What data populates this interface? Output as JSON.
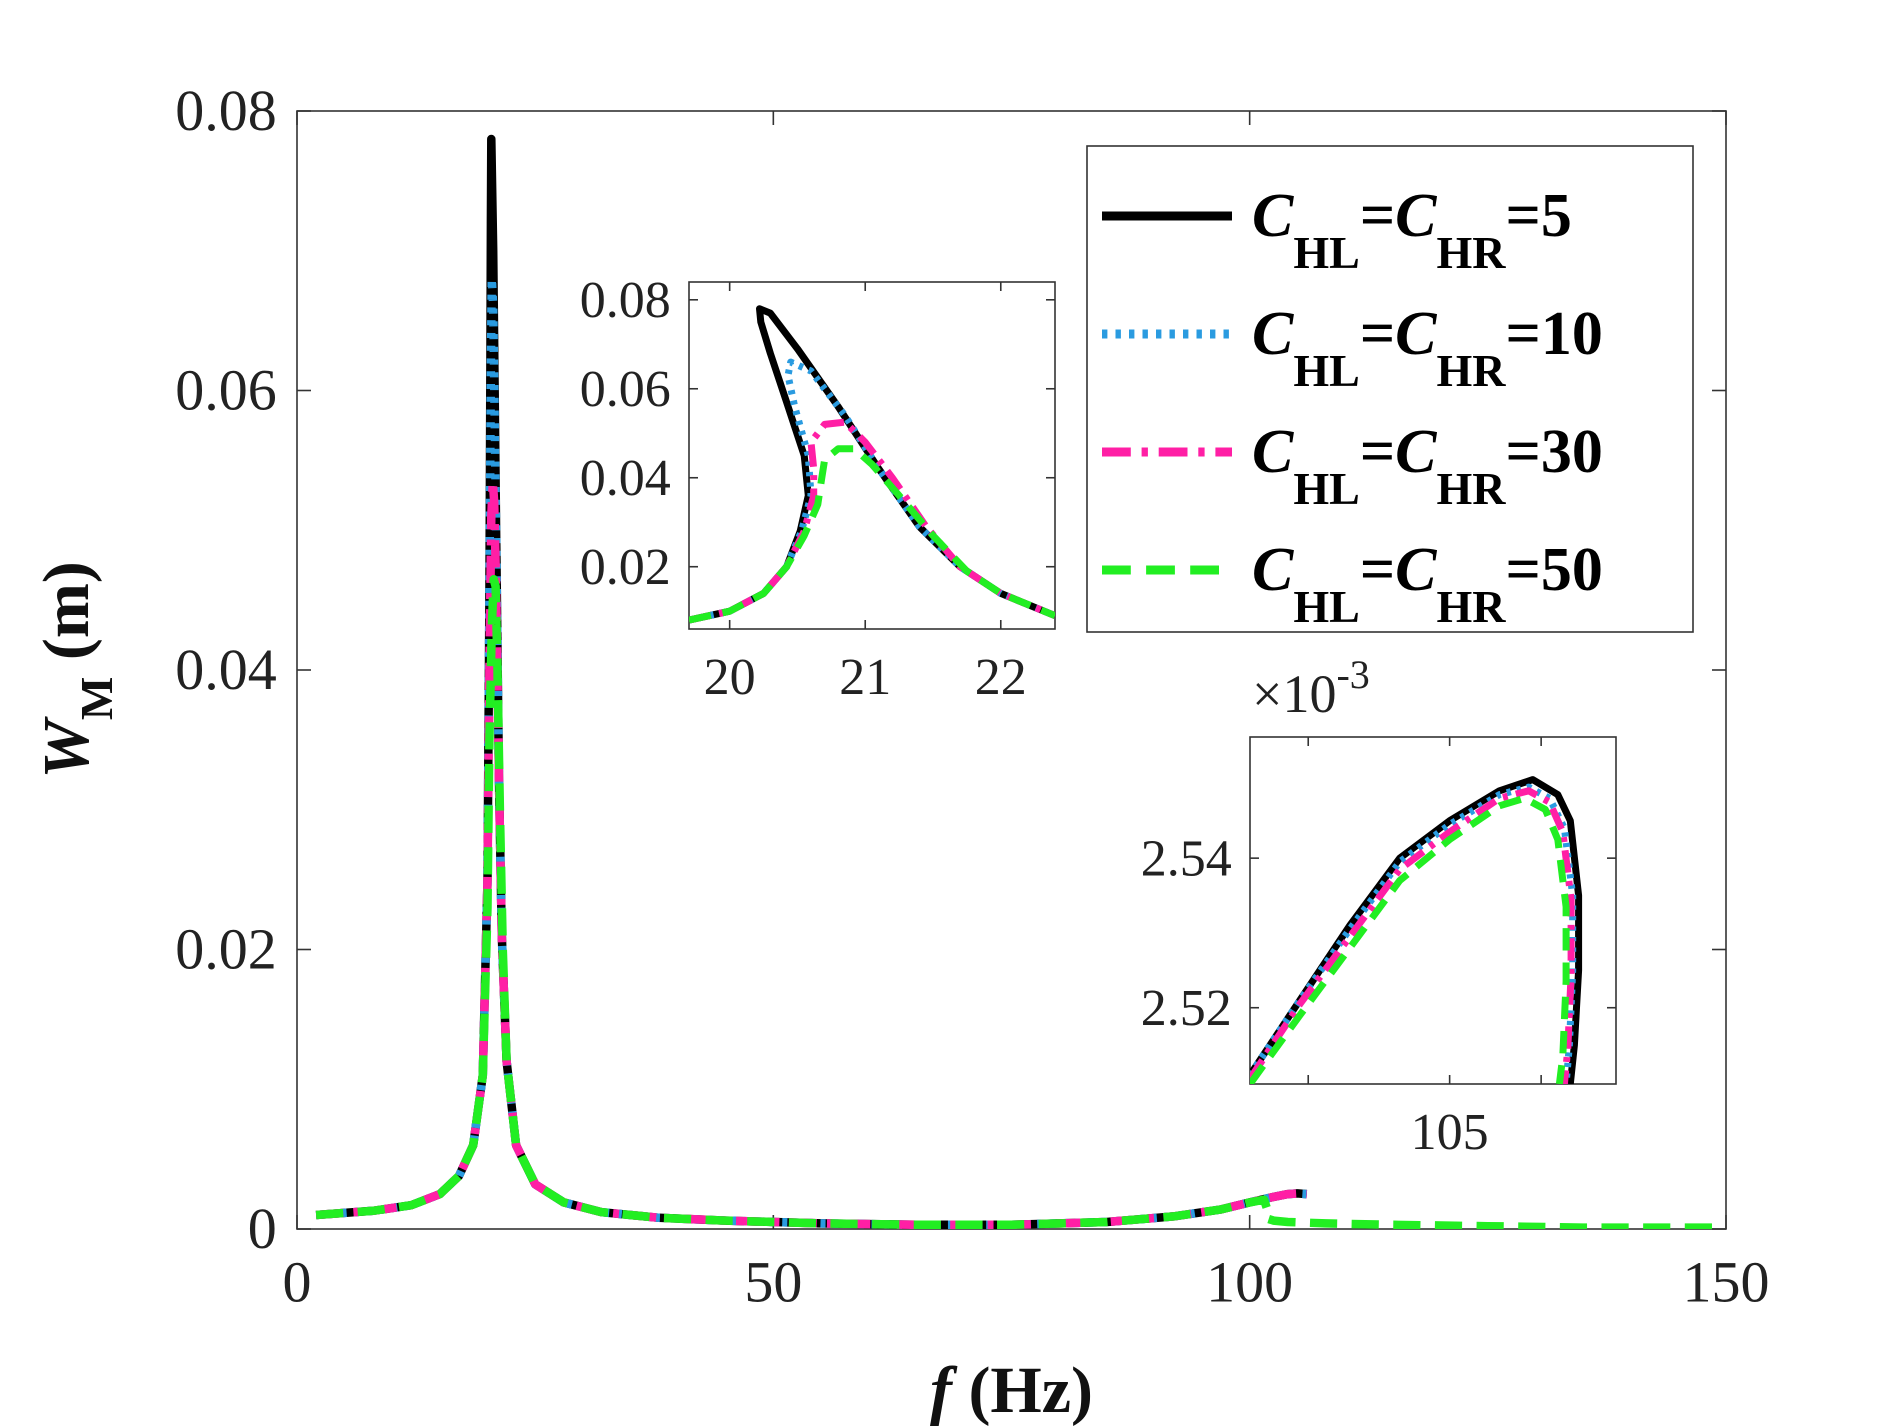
{
  "chart_data": [
    {
      "id": "main",
      "type": "line",
      "xlabel": {
        "italic": "f",
        "rest": " (Hz)"
      },
      "ylabel": {
        "italic": "W",
        "sub": "M",
        "rest": " (m)"
      },
      "xlim": [
        0,
        150
      ],
      "ylim": [
        0,
        0.08
      ],
      "xticks": [
        0,
        50,
        100,
        150
      ],
      "xtick_labels": [
        "0",
        "50",
        "100",
        "150"
      ],
      "yticks": [
        0,
        0.02,
        0.04,
        0.06,
        0.08
      ],
      "ytick_labels": [
        "0",
        "0.02",
        "0.04",
        "0.06",
        "0.08"
      ],
      "grid": false,
      "legend_position": "top-right",
      "series": [
        {
          "name": "CHL=CHR=5",
          "legend": {
            "c1": "C",
            "s1": "HL",
            "eq1": "=",
            "c2": "C",
            "s2": "HR",
            "eq2": "=5"
          },
          "color": "#000000",
          "style": "solid",
          "x": [
            2,
            8,
            12,
            15,
            17,
            18.5,
            19.5,
            20.0,
            20.2,
            20.3,
            20.35,
            20.4,
            20.6,
            20.9,
            21.2,
            21.5,
            22,
            23,
            25,
            28,
            32,
            38,
            45,
            55,
            65,
            75,
            85,
            92,
            97,
            100,
            102.5,
            104,
            105,
            106
          ],
          "y": [
            0.001,
            0.0013,
            0.0017,
            0.0025,
            0.0038,
            0.006,
            0.011,
            0.025,
            0.045,
            0.062,
            0.072,
            0.078,
            0.07,
            0.05,
            0.032,
            0.021,
            0.012,
            0.006,
            0.0032,
            0.0019,
            0.0012,
            0.0008,
            0.0006,
            0.0004,
            0.0003,
            0.0003,
            0.0005,
            0.0009,
            0.0014,
            0.0019,
            0.0023,
            0.0025,
            0.00255,
            0.0025
          ]
        },
        {
          "name": "CHL=CHR=10",
          "legend": {
            "c1": "C",
            "s1": "HL",
            "eq1": "=",
            "c2": "C",
            "s2": "HR",
            "eq2": "=10"
          },
          "color": "#2a9be0",
          "style": "dotted",
          "x": [
            2,
            8,
            12,
            15,
            17,
            18.5,
            19.5,
            20.0,
            20.2,
            20.35,
            20.45,
            20.6,
            20.9,
            21.2,
            21.5,
            22,
            23,
            25,
            28,
            32,
            38,
            45,
            55,
            65,
            75,
            85,
            92,
            97,
            100,
            102.5,
            104,
            105,
            106
          ],
          "y": [
            0.001,
            0.0013,
            0.0017,
            0.0025,
            0.0038,
            0.006,
            0.011,
            0.025,
            0.045,
            0.062,
            0.068,
            0.066,
            0.05,
            0.032,
            0.021,
            0.012,
            0.006,
            0.0032,
            0.0019,
            0.0012,
            0.0008,
            0.0006,
            0.0004,
            0.0003,
            0.0003,
            0.0005,
            0.0009,
            0.0014,
            0.0019,
            0.0023,
            0.0025,
            0.00254,
            0.0025
          ]
        },
        {
          "name": "CHL=CHR=30",
          "legend": {
            "c1": "C",
            "s1": "HL",
            "eq1": "=",
            "c2": "C",
            "s2": "HR",
            "eq2": "=30"
          },
          "color": "#ff1fa5",
          "style": "dashdot",
          "x": [
            2,
            8,
            12,
            15,
            17,
            18.5,
            19.5,
            20.0,
            20.2,
            20.4,
            20.55,
            20.7,
            20.9,
            21.2,
            21.5,
            22,
            23,
            25,
            28,
            32,
            38,
            45,
            55,
            65,
            75,
            85,
            92,
            97,
            100,
            102.5,
            104,
            105,
            106
          ],
          "y": [
            0.001,
            0.0013,
            0.0017,
            0.0025,
            0.0038,
            0.006,
            0.011,
            0.025,
            0.04,
            0.051,
            0.0535,
            0.052,
            0.046,
            0.032,
            0.021,
            0.012,
            0.006,
            0.0032,
            0.0019,
            0.0012,
            0.0008,
            0.0006,
            0.0004,
            0.0003,
            0.0003,
            0.0005,
            0.0009,
            0.0014,
            0.0019,
            0.0023,
            0.0025,
            0.00254,
            0.0025
          ]
        },
        {
          "name": "CHL=CHR=50",
          "legend": {
            "c1": "C",
            "s1": "HL",
            "eq1": "=",
            "c2": "C",
            "s2": "HR",
            "eq2": "=50"
          },
          "color": "#22ee22",
          "style": "dashed",
          "x": [
            2,
            8,
            12,
            15,
            17,
            18.5,
            19.5,
            20.0,
            20.2,
            20.45,
            20.65,
            20.85,
            21.05,
            21.3,
            21.6,
            22,
            23,
            25,
            28,
            32,
            38,
            45,
            55,
            65,
            75,
            85,
            92,
            97,
            100,
            101.5,
            101.8,
            101.6,
            102.5,
            104,
            108,
            115,
            125,
            135,
            150
          ],
          "y": [
            0.001,
            0.0013,
            0.0017,
            0.0025,
            0.0038,
            0.006,
            0.011,
            0.023,
            0.035,
            0.043,
            0.0465,
            0.046,
            0.04,
            0.03,
            0.02,
            0.012,
            0.006,
            0.0032,
            0.0019,
            0.0012,
            0.0008,
            0.0006,
            0.0004,
            0.0003,
            0.0003,
            0.0005,
            0.0009,
            0.0014,
            0.0019,
            0.0021,
            0.0015,
            0.0008,
            0.0006,
            0.0005,
            0.0004,
            0.0003,
            0.0002,
            0.0001,
            0.0001
          ]
        }
      ]
    },
    {
      "id": "inset1",
      "type": "line",
      "xlim": [
        19.7,
        22.4
      ],
      "ylim": [
        0.006,
        0.084
      ],
      "xticks": [
        20,
        21,
        22
      ],
      "xtick_labels": [
        "20",
        "21",
        "22"
      ],
      "yticks": [
        0.02,
        0.04,
        0.06,
        0.08
      ],
      "ytick_labels": [
        "0.02",
        "0.04",
        "0.06",
        "0.08"
      ],
      "series": [
        {
          "name": "CHL=CHR=5",
          "color": "#000000",
          "style": "solid",
          "x": [
            19.7,
            20.0,
            20.25,
            20.42,
            20.52,
            20.58,
            20.55,
            20.42,
            20.3,
            20.23,
            20.22,
            20.3,
            20.5,
            20.8,
            21.1,
            21.4,
            21.7,
            22.0,
            22.4
          ],
          "y": [
            0.008,
            0.01,
            0.014,
            0.02,
            0.028,
            0.036,
            0.045,
            0.057,
            0.068,
            0.075,
            0.078,
            0.077,
            0.069,
            0.056,
            0.042,
            0.029,
            0.02,
            0.014,
            0.009
          ]
        },
        {
          "name": "CHL=CHR=10",
          "color": "#2a9be0",
          "style": "dotted",
          "x": [
            19.7,
            20.0,
            20.25,
            20.42,
            20.53,
            20.6,
            20.58,
            20.48,
            20.43,
            20.45,
            20.6,
            20.85,
            21.1,
            21.4,
            21.7,
            22.0,
            22.4
          ],
          "y": [
            0.008,
            0.01,
            0.014,
            0.02,
            0.028,
            0.036,
            0.045,
            0.056,
            0.063,
            0.066,
            0.064,
            0.054,
            0.042,
            0.029,
            0.02,
            0.014,
            0.009
          ]
        },
        {
          "name": "CHL=CHR=30",
          "color": "#ff1fa5",
          "style": "dashdot",
          "x": [
            19.7,
            20.0,
            20.25,
            20.42,
            20.55,
            20.62,
            20.62,
            20.6,
            20.7,
            20.85,
            21.0,
            21.2,
            21.45,
            21.7,
            22.0,
            22.4
          ],
          "y": [
            0.008,
            0.01,
            0.014,
            0.02,
            0.028,
            0.036,
            0.042,
            0.048,
            0.052,
            0.0525,
            0.048,
            0.04,
            0.029,
            0.02,
            0.014,
            0.009
          ]
        },
        {
          "name": "CHL=CHR=50",
          "color": "#22ee22",
          "style": "dashed",
          "x": [
            19.7,
            20.0,
            20.25,
            20.42,
            20.55,
            20.65,
            20.68,
            20.7,
            20.8,
            20.92,
            21.05,
            21.25,
            21.5,
            21.75,
            22.0,
            22.4
          ],
          "y": [
            0.008,
            0.01,
            0.014,
            0.02,
            0.027,
            0.034,
            0.04,
            0.044,
            0.0465,
            0.0465,
            0.043,
            0.036,
            0.027,
            0.019,
            0.014,
            0.009
          ]
        }
      ]
    },
    {
      "id": "inset2",
      "type": "line",
      "scale_label": {
        "prefix": "×10",
        "exp": "-3"
      },
      "xlim": [
        102.6,
        107.0
      ],
      "ylim": [
        2.5098,
        2.5562
      ],
      "xticks": [
        103.3,
        105,
        106.1
      ],
      "xtick_labels": [
        "",
        "105",
        ""
      ],
      "yticks": [
        2.52,
        2.54
      ],
      "ytick_labels": [
        "2.52",
        "2.54"
      ],
      "series": [
        {
          "name": "CHL=CHR=5",
          "color": "#000000",
          "style": "solid",
          "x": [
            102.6,
            103.2,
            103.8,
            104.4,
            105.0,
            105.6,
            106.0,
            106.3,
            106.45,
            106.55,
            106.55,
            106.5,
            106.45
          ],
          "y": [
            2.511,
            2.521,
            2.531,
            2.54,
            2.545,
            2.549,
            2.5505,
            2.5485,
            2.545,
            2.535,
            2.525,
            2.515,
            2.5098
          ]
        },
        {
          "name": "CHL=CHR=10",
          "color": "#2a9be0",
          "style": "dotted",
          "x": [
            102.6,
            103.2,
            103.8,
            104.4,
            105.0,
            105.6,
            105.95,
            106.2,
            106.38,
            106.48,
            106.48,
            106.44,
            106.4
          ],
          "y": [
            2.511,
            2.521,
            2.5305,
            2.5395,
            2.5445,
            2.5485,
            2.5495,
            2.548,
            2.544,
            2.535,
            2.525,
            2.515,
            2.5098
          ]
        },
        {
          "name": "CHL=CHR=30",
          "color": "#ff1fa5",
          "style": "dashdot",
          "x": [
            102.6,
            103.2,
            103.8,
            104.4,
            105.0,
            105.6,
            105.95,
            106.2,
            106.36,
            106.46,
            106.46,
            106.42,
            106.38
          ],
          "y": [
            2.5105,
            2.5205,
            2.5295,
            2.5385,
            2.5435,
            2.548,
            2.549,
            2.5475,
            2.5435,
            2.5345,
            2.5245,
            2.5145,
            2.5098
          ]
        },
        {
          "name": "CHL=CHR=50",
          "color": "#22ee22",
          "style": "dashed",
          "x": [
            102.6,
            103.2,
            103.8,
            104.4,
            105.0,
            105.6,
            105.9,
            106.15,
            106.3,
            106.4,
            106.4,
            106.36,
            106.32
          ],
          "y": [
            2.5098,
            2.519,
            2.528,
            2.537,
            2.5425,
            2.547,
            2.548,
            2.5465,
            2.5425,
            2.5335,
            2.5235,
            2.5135,
            2.5098
          ]
        }
      ]
    }
  ]
}
